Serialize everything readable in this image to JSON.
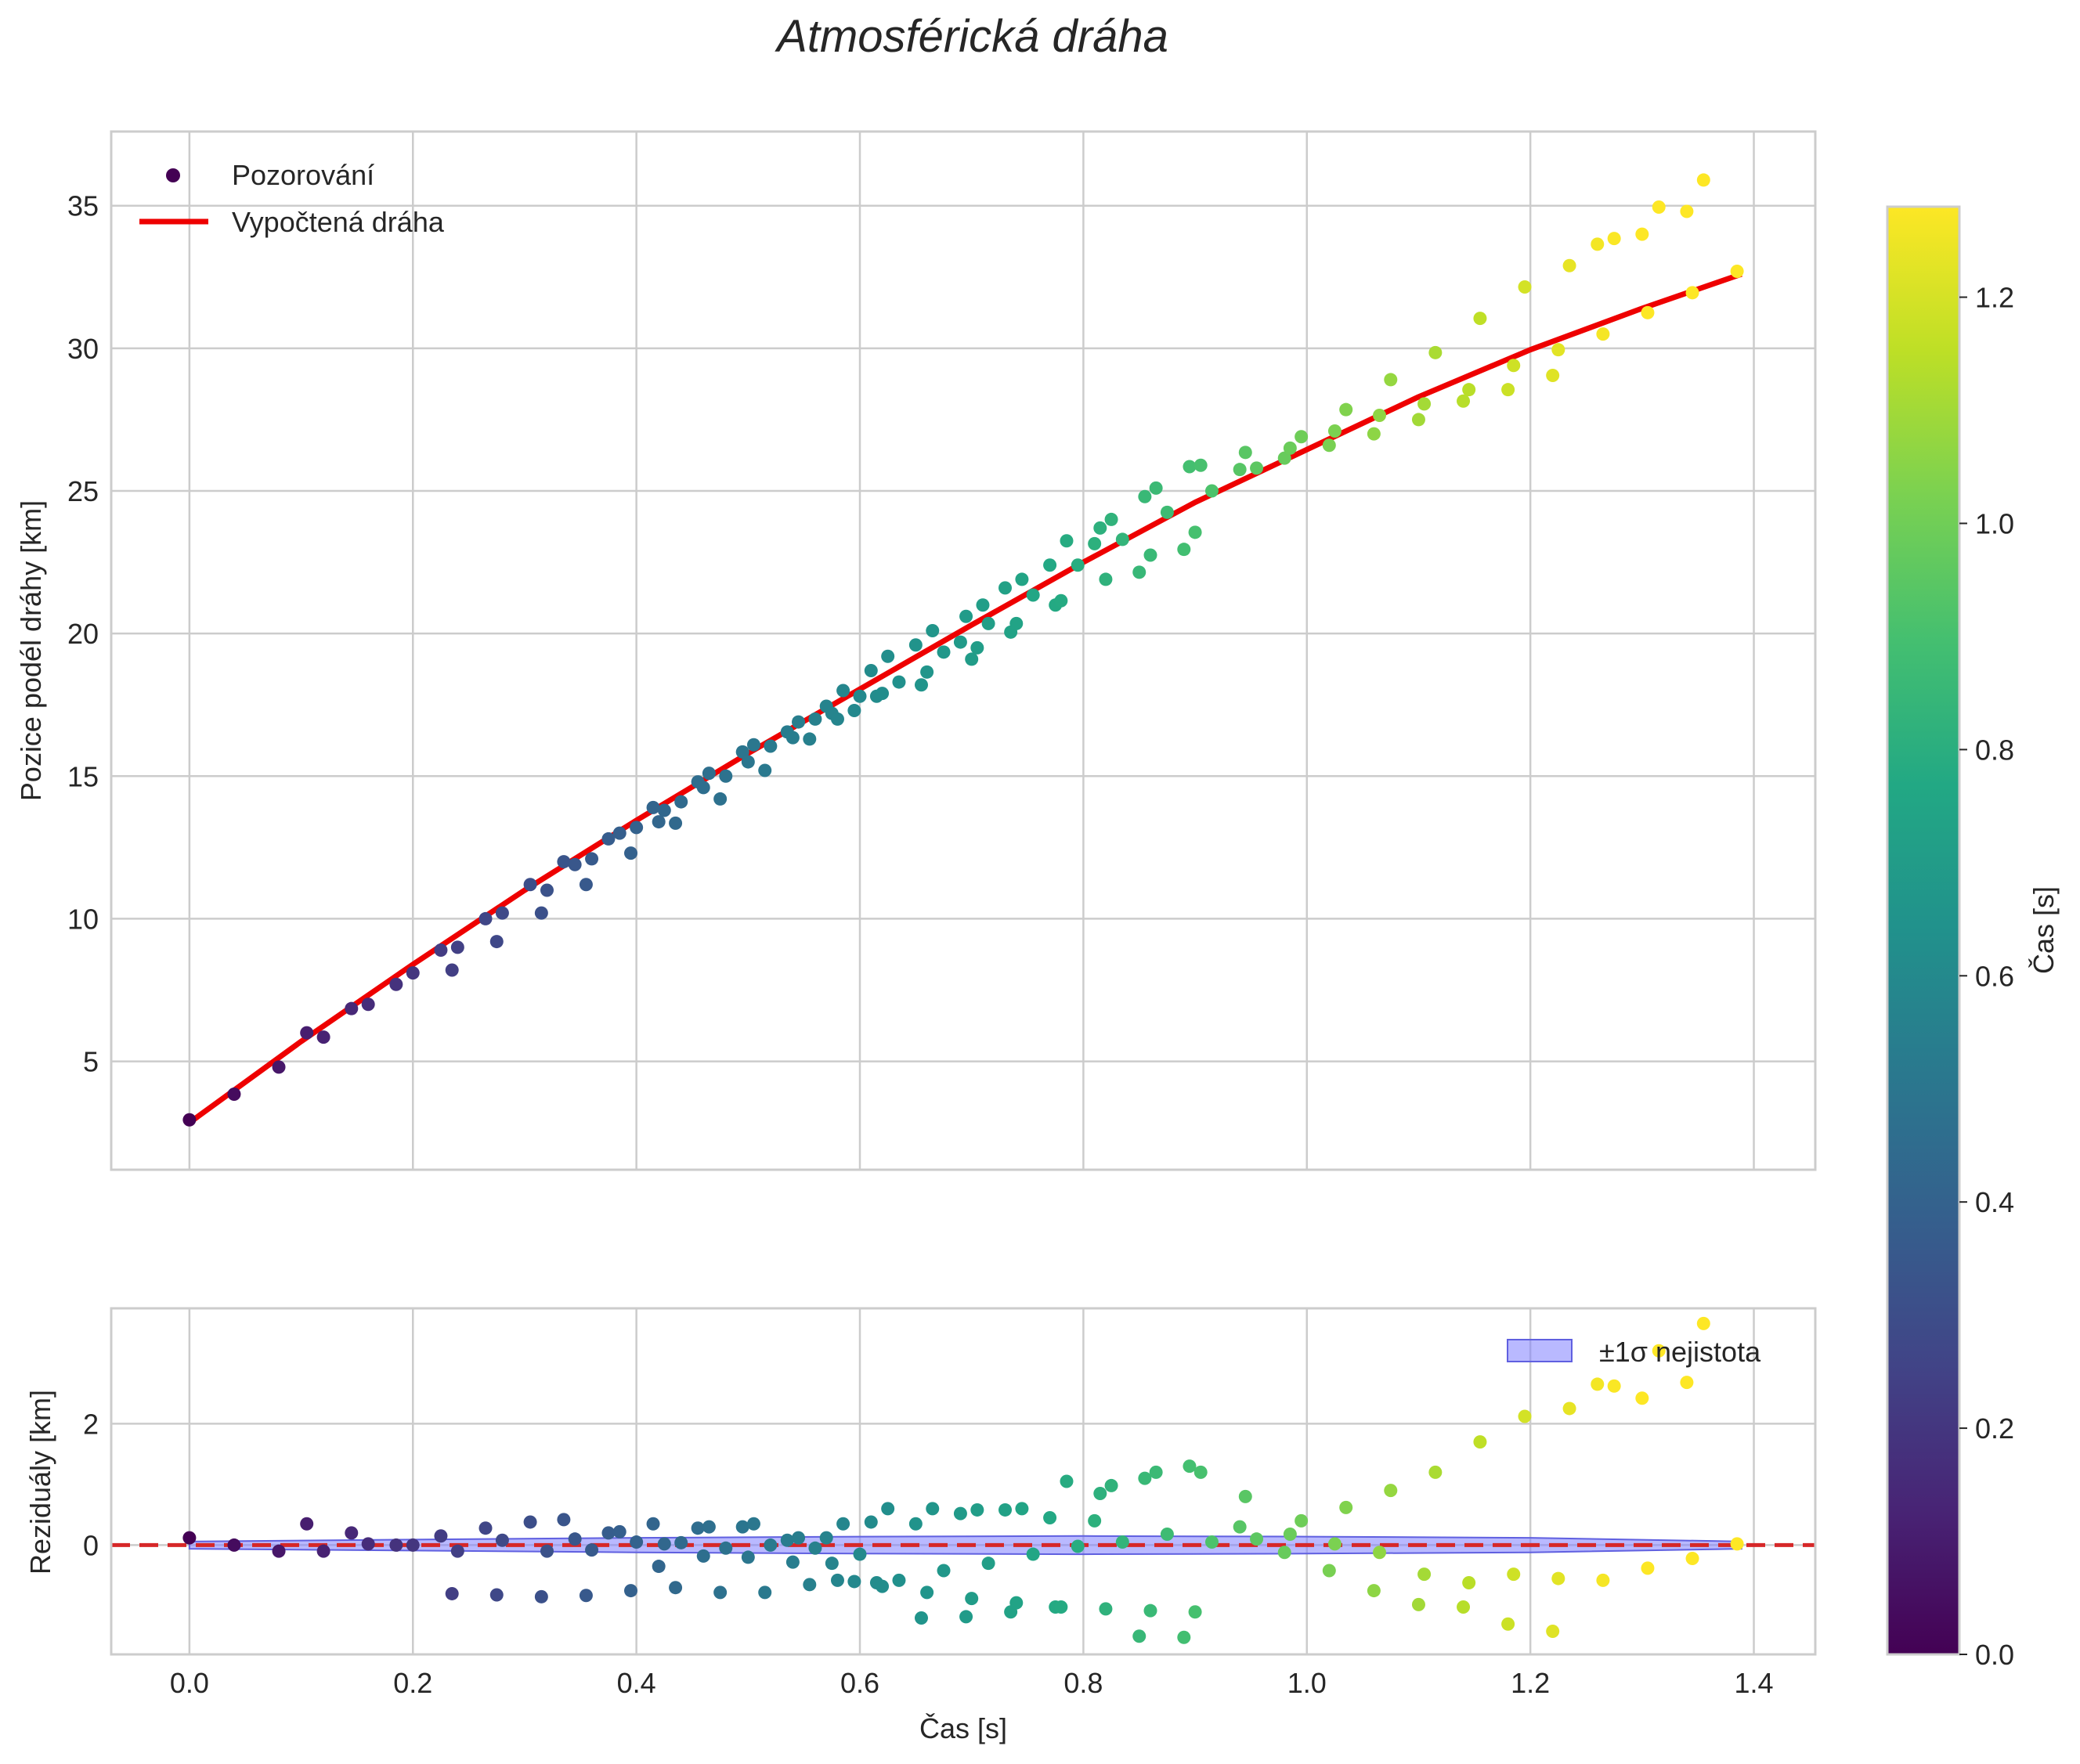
{
  "chart_data": {
    "type": "scatter",
    "title": "Atmosférická dráha",
    "xlabel": "Čas [s]",
    "colors": {
      "fit_line": "#ee0000",
      "zero_line": "#d62728",
      "band_fill": "#8080ff",
      "band_edge": "#6060e0",
      "grid": "#cccccc",
      "frame": "#cccccc"
    },
    "top_panel": {
      "ylabel": "Pozice podél dráhy [km]",
      "xlim": [
        -0.07,
        1.455
      ],
      "ylim": [
        1.2,
        37.6
      ],
      "yticks": [
        5,
        10,
        15,
        20,
        25,
        30,
        35
      ],
      "legend_position": "upper-left",
      "legend": [
        "Pozorování",
        "Vypočtená dráha"
      ],
      "fit_curve": {
        "t": [
          0.0,
          0.1,
          0.2,
          0.3,
          0.4,
          0.5,
          0.6,
          0.7,
          0.8,
          0.9,
          1.0,
          1.1,
          1.2,
          1.3,
          1.389
        ],
        "pos": [
          2.85,
          5.7,
          8.4,
          11.0,
          13.45,
          15.8,
          18.05,
          20.3,
          22.5,
          24.6,
          26.45,
          28.3,
          29.95,
          31.4,
          32.6
        ]
      },
      "observations": [
        [
          0.0,
          2.95
        ],
        [
          0.04,
          3.85
        ],
        [
          0.08,
          4.8
        ],
        [
          0.105,
          6.0
        ],
        [
          0.12,
          5.85
        ],
        [
          0.145,
          6.85
        ],
        [
          0.16,
          7.0
        ],
        [
          0.185,
          7.7
        ],
        [
          0.2,
          8.1
        ],
        [
          0.225,
          8.9
        ],
        [
          0.235,
          8.2
        ],
        [
          0.24,
          9.0
        ],
        [
          0.265,
          10.0
        ],
        [
          0.275,
          9.2
        ],
        [
          0.28,
          10.2
        ],
        [
          0.305,
          11.2
        ],
        [
          0.315,
          10.2
        ],
        [
          0.32,
          11.0
        ],
        [
          0.335,
          12.0
        ],
        [
          0.345,
          11.9
        ],
        [
          0.355,
          11.2
        ],
        [
          0.36,
          12.1
        ],
        [
          0.375,
          12.8
        ],
        [
          0.385,
          13.0
        ],
        [
          0.395,
          12.3
        ],
        [
          0.4,
          13.2
        ],
        [
          0.415,
          13.9
        ],
        [
          0.42,
          13.4
        ],
        [
          0.425,
          13.8
        ],
        [
          0.435,
          13.35
        ],
        [
          0.44,
          14.1
        ],
        [
          0.455,
          14.8
        ],
        [
          0.46,
          14.6
        ],
        [
          0.465,
          15.1
        ],
        [
          0.475,
          14.2
        ],
        [
          0.48,
          15.0
        ],
        [
          0.495,
          15.85
        ],
        [
          0.5,
          15.5
        ],
        [
          0.505,
          16.1
        ],
        [
          0.515,
          15.2
        ],
        [
          0.52,
          16.05
        ],
        [
          0.535,
          16.55
        ],
        [
          0.54,
          16.35
        ],
        [
          0.545,
          16.9
        ],
        [
          0.555,
          16.3
        ],
        [
          0.56,
          17.0
        ],
        [
          0.57,
          17.45
        ],
        [
          0.575,
          17.2
        ],
        [
          0.58,
          17.0
        ],
        [
          0.585,
          18.0
        ],
        [
          0.595,
          17.3
        ],
        [
          0.6,
          17.8
        ],
        [
          0.61,
          18.7
        ],
        [
          0.615,
          17.8
        ],
        [
          0.62,
          17.9
        ],
        [
          0.625,
          19.2
        ],
        [
          0.635,
          18.3
        ],
        [
          0.65,
          19.6
        ],
        [
          0.655,
          18.2
        ],
        [
          0.66,
          18.65
        ],
        [
          0.665,
          20.1
        ],
        [
          0.675,
          19.35
        ],
        [
          0.69,
          19.7
        ],
        [
          0.695,
          20.6
        ],
        [
          0.7,
          19.1
        ],
        [
          0.705,
          19.5
        ],
        [
          0.71,
          21.0
        ],
        [
          0.715,
          20.35
        ],
        [
          0.73,
          21.6
        ],
        [
          0.735,
          20.05
        ],
        [
          0.74,
          20.35
        ],
        [
          0.745,
          21.9
        ],
        [
          0.755,
          21.35
        ],
        [
          0.77,
          22.4
        ],
        [
          0.775,
          21.0
        ],
        [
          0.78,
          21.15
        ],
        [
          0.785,
          23.25
        ],
        [
          0.795,
          22.4
        ],
        [
          0.81,
          23.15
        ],
        [
          0.815,
          23.7
        ],
        [
          0.82,
          21.9
        ],
        [
          0.825,
          24.0
        ],
        [
          0.835,
          23.3
        ],
        [
          0.85,
          22.15
        ],
        [
          0.855,
          24.8
        ],
        [
          0.86,
          22.75
        ],
        [
          0.865,
          25.1
        ],
        [
          0.875,
          24.25
        ],
        [
          0.89,
          22.95
        ],
        [
          0.895,
          25.85
        ],
        [
          0.9,
          23.55
        ],
        [
          0.905,
          25.9
        ],
        [
          0.915,
          25.0
        ],
        [
          0.94,
          25.75
        ],
        [
          0.945,
          26.35
        ],
        [
          0.955,
          25.8
        ],
        [
          0.98,
          26.15
        ],
        [
          0.985,
          26.5
        ],
        [
          0.995,
          26.9
        ],
        [
          1.02,
          26.6
        ],
        [
          1.025,
          27.1
        ],
        [
          1.035,
          27.85
        ],
        [
          1.06,
          27.0
        ],
        [
          1.065,
          27.65
        ],
        [
          1.075,
          28.9
        ],
        [
          1.1,
          27.5
        ],
        [
          1.105,
          28.05
        ],
        [
          1.115,
          29.85
        ],
        [
          1.14,
          28.15
        ],
        [
          1.145,
          28.55
        ],
        [
          1.155,
          31.05
        ],
        [
          1.18,
          28.55
        ],
        [
          1.185,
          29.4
        ],
        [
          1.195,
          32.15
        ],
        [
          1.22,
          29.05
        ],
        [
          1.225,
          29.95
        ],
        [
          1.235,
          32.9
        ],
        [
          1.26,
          33.65
        ],
        [
          1.265,
          30.5
        ],
        [
          1.275,
          33.85
        ],
        [
          1.3,
          34.0
        ],
        [
          1.305,
          31.25
        ],
        [
          1.315,
          34.95
        ],
        [
          1.34,
          34.8
        ],
        [
          1.345,
          31.95
        ],
        [
          1.355,
          35.9
        ],
        [
          1.385,
          32.7
        ]
      ]
    },
    "bottom_panel": {
      "ylabel": "Reziduály [km]",
      "xlim": [
        -0.07,
        1.455
      ],
      "ylim": [
        -1.8,
        3.9
      ],
      "yticks": [
        0,
        2
      ],
      "xticks": [
        0.0,
        0.2,
        0.4,
        0.6,
        0.8,
        1.0,
        1.2,
        1.4
      ],
      "legend_position": "upper-right",
      "legend": [
        "±1σ nejistota"
      ],
      "band": {
        "t": [
          0.0,
          0.2,
          0.4,
          0.6,
          0.8,
          1.0,
          1.2,
          1.389
        ],
        "sigma": [
          0.06,
          0.09,
          0.12,
          0.14,
          0.15,
          0.14,
          0.12,
          0.06
        ]
      },
      "residuals": [
        [
          0.0,
          0.12
        ],
        [
          0.04,
          0.0
        ],
        [
          0.08,
          -0.1
        ],
        [
          0.105,
          0.35
        ],
        [
          0.12,
          -0.1
        ],
        [
          0.145,
          0.2
        ],
        [
          0.16,
          0.02
        ],
        [
          0.185,
          0.0
        ],
        [
          0.2,
          0.0
        ],
        [
          0.225,
          0.15
        ],
        [
          0.235,
          -0.8
        ],
        [
          0.24,
          -0.1
        ],
        [
          0.265,
          0.28
        ],
        [
          0.275,
          -0.82
        ],
        [
          0.28,
          0.08
        ],
        [
          0.305,
          0.38
        ],
        [
          0.315,
          -0.85
        ],
        [
          0.32,
          -0.1
        ],
        [
          0.335,
          0.42
        ],
        [
          0.345,
          0.1
        ],
        [
          0.355,
          -0.83
        ],
        [
          0.36,
          -0.08
        ],
        [
          0.375,
          0.2
        ],
        [
          0.385,
          0.22
        ],
        [
          0.395,
          -0.75
        ],
        [
          0.4,
          0.05
        ],
        [
          0.415,
          0.35
        ],
        [
          0.42,
          -0.35
        ],
        [
          0.425,
          0.02
        ],
        [
          0.435,
          -0.7
        ],
        [
          0.44,
          0.04
        ],
        [
          0.455,
          0.28
        ],
        [
          0.46,
          -0.18
        ],
        [
          0.465,
          0.3
        ],
        [
          0.475,
          -0.78
        ],
        [
          0.48,
          -0.05
        ],
        [
          0.495,
          0.3
        ],
        [
          0.5,
          -0.2
        ],
        [
          0.505,
          0.35
        ],
        [
          0.515,
          -0.78
        ],
        [
          0.52,
          0.0
        ],
        [
          0.535,
          0.08
        ],
        [
          0.54,
          -0.28
        ],
        [
          0.545,
          0.12
        ],
        [
          0.555,
          -0.65
        ],
        [
          0.56,
          -0.05
        ],
        [
          0.57,
          0.12
        ],
        [
          0.575,
          -0.3
        ],
        [
          0.58,
          -0.58
        ],
        [
          0.585,
          0.35
        ],
        [
          0.595,
          -0.6
        ],
        [
          0.6,
          -0.15
        ],
        [
          0.61,
          0.38
        ],
        [
          0.615,
          -0.62
        ],
        [
          0.62,
          -0.68
        ],
        [
          0.625,
          0.6
        ],
        [
          0.635,
          -0.58
        ],
        [
          0.65,
          0.35
        ],
        [
          0.655,
          -1.2
        ],
        [
          0.66,
          -0.78
        ],
        [
          0.665,
          0.6
        ],
        [
          0.675,
          -0.42
        ],
        [
          0.69,
          0.52
        ],
        [
          0.695,
          -1.18
        ],
        [
          0.7,
          -0.88
        ],
        [
          0.705,
          0.58
        ],
        [
          0.715,
          -0.3
        ],
        [
          0.73,
          0.58
        ],
        [
          0.735,
          -1.1
        ],
        [
          0.74,
          -0.95
        ],
        [
          0.745,
          0.6
        ],
        [
          0.755,
          -0.15
        ],
        [
          0.77,
          0.45
        ],
        [
          0.775,
          -1.02
        ],
        [
          0.78,
          -1.02
        ],
        [
          0.785,
          1.05
        ],
        [
          0.795,
          -0.02
        ],
        [
          0.81,
          0.4
        ],
        [
          0.815,
          0.85
        ],
        [
          0.82,
          -1.05
        ],
        [
          0.825,
          0.98
        ],
        [
          0.835,
          0.05
        ],
        [
          0.85,
          -1.5
        ],
        [
          0.855,
          1.1
        ],
        [
          0.86,
          -1.08
        ],
        [
          0.865,
          1.2
        ],
        [
          0.875,
          0.18
        ],
        [
          0.89,
          -1.52
        ],
        [
          0.895,
          1.3
        ],
        [
          0.9,
          -1.1
        ],
        [
          0.905,
          1.2
        ],
        [
          0.915,
          0.05
        ],
        [
          0.94,
          0.3
        ],
        [
          0.945,
          0.8
        ],
        [
          0.955,
          0.1
        ],
        [
          0.98,
          -0.12
        ],
        [
          0.985,
          0.18
        ],
        [
          0.995,
          0.4
        ],
        [
          1.02,
          -0.42
        ],
        [
          1.025,
          0.02
        ],
        [
          1.035,
          0.62
        ],
        [
          1.06,
          -0.75
        ],
        [
          1.065,
          -0.12
        ],
        [
          1.075,
          0.9
        ],
        [
          1.1,
          -0.98
        ],
        [
          1.105,
          -0.48
        ],
        [
          1.115,
          1.2
        ],
        [
          1.14,
          -1.02
        ],
        [
          1.145,
          -0.62
        ],
        [
          1.155,
          1.7
        ],
        [
          1.18,
          -1.3
        ],
        [
          1.185,
          -0.48
        ],
        [
          1.195,
          2.12
        ],
        [
          1.22,
          -1.42
        ],
        [
          1.225,
          -0.55
        ],
        [
          1.235,
          2.25
        ],
        [
          1.26,
          2.65
        ],
        [
          1.265,
          -0.58
        ],
        [
          1.275,
          2.62
        ],
        [
          1.3,
          2.42
        ],
        [
          1.305,
          -0.38
        ],
        [
          1.315,
          3.2
        ],
        [
          1.34,
          2.68
        ],
        [
          1.345,
          -0.22
        ],
        [
          1.355,
          3.65
        ],
        [
          1.385,
          0.02
        ]
      ]
    },
    "colorbar": {
      "label": "Čas [s]",
      "range": [
        0.0,
        1.28
      ],
      "ticks": [
        "0.0",
        "0.2",
        "0.4",
        "0.6",
        "0.8",
        "1.0",
        "1.2"
      ],
      "colormap": "viridis"
    }
  }
}
